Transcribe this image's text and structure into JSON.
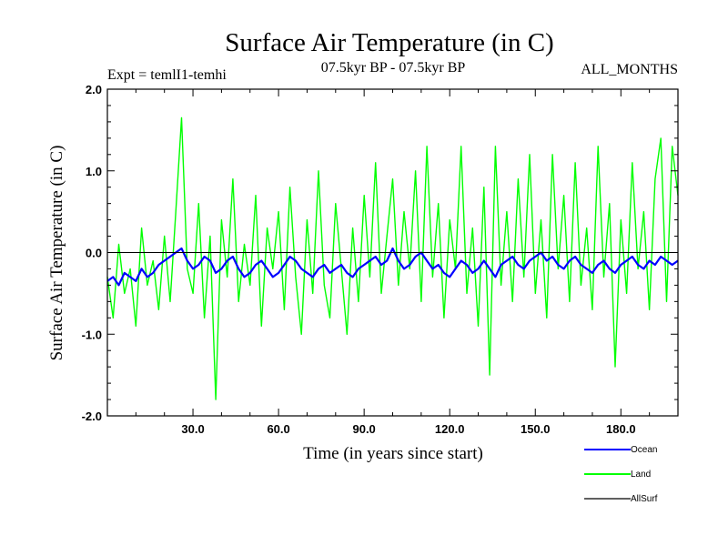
{
  "chart_data": {
    "type": "line",
    "title": "Surface Air Temperature (in C)",
    "subtitle_left": "Expt = temlI1-temhi",
    "subtitle_center": "07.5kyr BP - 07.5kyr BP",
    "subtitle_right": "ALL_MONTHS",
    "xlabel": "Time (in years since start)",
    "ylabel": "Surface Air Temperature (in C)",
    "xlim": [
      0,
      200
    ],
    "ylim": [
      -2.0,
      2.0
    ],
    "x_ticks": [
      30.0,
      60.0,
      90.0,
      120.0,
      150.0,
      180.0
    ],
    "x_tick_labels": [
      "30.0",
      "60.0",
      "90.0",
      "120.0",
      "150.0",
      "180.0"
    ],
    "y_ticks": [
      -2.0,
      -1.0,
      0.0,
      1.0,
      2.0
    ],
    "y_tick_labels": [
      "-2.0",
      "-1.0",
      "0.0",
      "1.0",
      "2.0"
    ],
    "zero_line": true,
    "series": [
      {
        "name": "Land",
        "color": "#00ff00",
        "x": [
          0,
          2,
          4,
          6,
          8,
          10,
          12,
          14,
          16,
          18,
          20,
          22,
          24,
          26,
          28,
          30,
          32,
          34,
          36,
          38,
          40,
          42,
          44,
          46,
          48,
          50,
          52,
          54,
          56,
          58,
          60,
          62,
          64,
          66,
          68,
          70,
          72,
          74,
          76,
          78,
          80,
          82,
          84,
          86,
          88,
          90,
          92,
          94,
          96,
          98,
          100,
          102,
          104,
          106,
          108,
          110,
          112,
          114,
          116,
          118,
          120,
          122,
          124,
          126,
          128,
          130,
          132,
          134,
          136,
          138,
          140,
          142,
          144,
          146,
          148,
          150,
          152,
          154,
          156,
          158,
          160,
          162,
          164,
          166,
          168,
          170,
          172,
          174,
          176,
          178,
          180,
          182,
          184,
          186,
          188,
          190,
          192,
          194,
          196,
          198,
          200
        ],
        "values": [
          -0.3,
          -0.8,
          0.1,
          -0.5,
          -0.2,
          -0.9,
          0.3,
          -0.4,
          -0.1,
          -0.7,
          0.2,
          -0.6,
          0.5,
          1.65,
          -0.2,
          -0.5,
          0.6,
          -0.8,
          0.2,
          -1.8,
          0.4,
          -0.3,
          0.9,
          -0.6,
          0.1,
          -0.4,
          0.7,
          -0.9,
          0.3,
          -0.2,
          0.5,
          -0.7,
          0.8,
          -0.3,
          -1.0,
          0.4,
          -0.5,
          1.0,
          -0.4,
          -0.8,
          0.6,
          -0.2,
          -1.0,
          0.3,
          -0.6,
          0.7,
          -0.3,
          1.1,
          -0.5,
          0.2,
          0.9,
          -0.4,
          0.5,
          -0.2,
          1.0,
          -0.6,
          1.3,
          -0.3,
          0.6,
          -0.8,
          0.4,
          -0.2,
          1.3,
          -0.5,
          0.3,
          -0.9,
          0.8,
          -1.5,
          1.3,
          -0.4,
          0.5,
          -0.6,
          0.9,
          -0.3,
          1.2,
          -0.5,
          0.4,
          -0.8,
          1.2,
          -0.2,
          0.7,
          -0.6,
          1.1,
          -0.4,
          0.3,
          -0.7,
          1.3,
          -0.3,
          0.6,
          -1.4,
          0.4,
          -0.5,
          1.1,
          -0.2,
          0.5,
          -0.7,
          0.9,
          1.4,
          -0.6,
          1.3,
          0.7
        ]
      },
      {
        "name": "Ocean",
        "color": "#0000ff",
        "x": [
          0,
          2,
          4,
          6,
          8,
          10,
          12,
          14,
          16,
          18,
          20,
          22,
          24,
          26,
          28,
          30,
          32,
          34,
          36,
          38,
          40,
          42,
          44,
          46,
          48,
          50,
          52,
          54,
          56,
          58,
          60,
          62,
          64,
          66,
          68,
          70,
          72,
          74,
          76,
          78,
          80,
          82,
          84,
          86,
          88,
          90,
          92,
          94,
          96,
          98,
          100,
          102,
          104,
          106,
          108,
          110,
          112,
          114,
          116,
          118,
          120,
          122,
          124,
          126,
          128,
          130,
          132,
          134,
          136,
          138,
          140,
          142,
          144,
          146,
          148,
          150,
          152,
          154,
          156,
          158,
          160,
          162,
          164,
          166,
          168,
          170,
          172,
          174,
          176,
          178,
          180,
          182,
          184,
          186,
          188,
          190,
          192,
          194,
          196,
          198,
          200
        ],
        "values": [
          -0.35,
          -0.3,
          -0.4,
          -0.25,
          -0.3,
          -0.35,
          -0.2,
          -0.3,
          -0.25,
          -0.15,
          -0.1,
          -0.05,
          0.0,
          0.05,
          -0.1,
          -0.2,
          -0.15,
          -0.05,
          -0.1,
          -0.25,
          -0.2,
          -0.1,
          -0.05,
          -0.2,
          -0.3,
          -0.25,
          -0.15,
          -0.1,
          -0.2,
          -0.3,
          -0.25,
          -0.15,
          -0.05,
          -0.1,
          -0.2,
          -0.25,
          -0.3,
          -0.2,
          -0.15,
          -0.25,
          -0.2,
          -0.15,
          -0.25,
          -0.3,
          -0.2,
          -0.15,
          -0.1,
          -0.05,
          -0.15,
          -0.1,
          0.05,
          -0.1,
          -0.2,
          -0.15,
          -0.05,
          0.0,
          -0.1,
          -0.2,
          -0.15,
          -0.25,
          -0.3,
          -0.2,
          -0.1,
          -0.15,
          -0.25,
          -0.2,
          -0.1,
          -0.2,
          -0.3,
          -0.15,
          -0.1,
          -0.05,
          -0.15,
          -0.2,
          -0.1,
          -0.05,
          0.0,
          -0.1,
          -0.05,
          -0.15,
          -0.2,
          -0.1,
          -0.05,
          -0.15,
          -0.2,
          -0.25,
          -0.15,
          -0.1,
          -0.2,
          -0.25,
          -0.15,
          -0.1,
          -0.05,
          -0.15,
          -0.2,
          -0.1,
          -0.15,
          -0.05,
          -0.1,
          -0.15,
          -0.1
        ]
      },
      {
        "name": "AllSurf",
        "color": "#000000",
        "x": [],
        "values": []
      }
    ],
    "legend": [
      "Ocean",
      "Land",
      "AllSurf"
    ],
    "legend_position": "bottom-right"
  }
}
